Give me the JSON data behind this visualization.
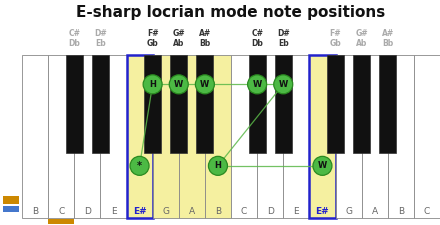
{
  "title": "E-sharp locrian mode note positions",
  "white_keys": [
    "B",
    "C",
    "D",
    "E",
    "E#",
    "G",
    "A",
    "B",
    "C",
    "D",
    "E",
    "E#",
    "G",
    "A",
    "B",
    "C"
  ],
  "n_white": 16,
  "black_key_after_white": [
    1,
    2,
    4,
    5,
    6,
    8,
    9,
    11,
    12,
    13
  ],
  "black_key_labels": [
    [
      "C#",
      "Db"
    ],
    [
      "D#",
      "Eb"
    ],
    [
      "F#",
      "Gb"
    ],
    [
      "G#",
      "Ab"
    ],
    [
      "A#",
      "Bb"
    ],
    [
      "C#",
      "Db"
    ],
    [
      "D#",
      "Eb"
    ],
    [
      "F#",
      "Gb"
    ],
    [
      "G#",
      "Ab"
    ],
    [
      "A#",
      "Bb"
    ]
  ],
  "header_active_bk": [
    2,
    3,
    4,
    5,
    6
  ],
  "yellow_whites": [
    4,
    5,
    6,
    7,
    11
  ],
  "blue_border_whites": [
    4,
    11
  ],
  "orange_underline_white": 1,
  "circle_items": [
    {
      "key_type": "white",
      "key_idx": 4,
      "label": "*"
    },
    {
      "key_type": "black",
      "key_idx": 2,
      "label": "H"
    },
    {
      "key_type": "black",
      "key_idx": 3,
      "label": "W"
    },
    {
      "key_type": "black",
      "key_idx": 4,
      "label": "W"
    },
    {
      "key_type": "black",
      "key_idx": 5,
      "label": "W"
    },
    {
      "key_type": "black",
      "key_idx": 6,
      "label": "W"
    },
    {
      "key_type": "white",
      "key_idx": 7,
      "label": "H"
    },
    {
      "key_type": "white",
      "key_idx": 11,
      "label": "W"
    }
  ],
  "circle_color": "#4cb944",
  "circle_edge_color": "#2a8a20",
  "line_color": "#5ab848",
  "white_active_label_color": "#2222cc",
  "white_default_label_color": "#666666",
  "header_active_color": "#333333",
  "header_inactive_color": "#aaaaaa",
  "yellow_color": "#f5f0a0",
  "orange_color": "#cc8800",
  "blue_border_color": "#2222cc",
  "sidebar_bg": "#1a2a4a",
  "sidebar_text_color": "#ffffff",
  "bg_color": "#ffffff",
  "piano_border_color": "#888888",
  "black_key_color": "#111111"
}
